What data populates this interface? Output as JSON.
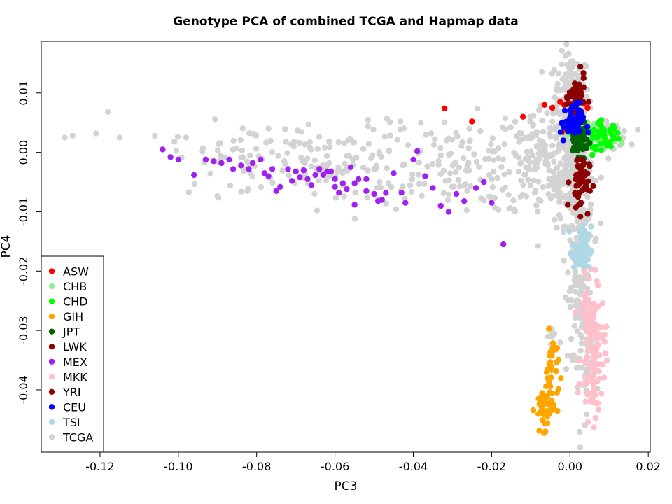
{
  "chart_data": {
    "type": "scatter",
    "title": "Genotype PCA of combined TCGA and Hapmap data",
    "xlabel": "PC3",
    "ylabel": "PC4",
    "xlim": [
      -0.135,
      0.0205
    ],
    "ylim": [
      -0.0505,
      0.0187
    ],
    "xticks": [
      -0.12,
      -0.1,
      -0.08,
      -0.06,
      -0.04,
      -0.02,
      0.0,
      0.02
    ],
    "xtick_labels": [
      "-0.12",
      "-0.10",
      "-0.08",
      "-0.06",
      "-0.04",
      "-0.02",
      "0.00",
      "0.02"
    ],
    "yticks": [
      -0.04,
      -0.03,
      -0.02,
      -0.01,
      0.0,
      0.01
    ],
    "ytick_labels": [
      "-0.04",
      "-0.03",
      "-0.02",
      "-0.01",
      "0.00",
      "0.01"
    ],
    "legend_position": "bottom-left",
    "series": [
      {
        "name": "ASW",
        "color": "#ff0000",
        "clusters": [
          {
            "points": [
              [
                -0.032,
                0.0074
              ],
              [
                -0.025,
                0.0052
              ],
              [
                -0.012,
                0.006
              ],
              [
                -0.0065,
                0.008
              ],
              [
                -0.0045,
                0.0075
              ],
              [
                -0.0025,
                0.0085
              ],
              [
                -0.0015,
                0.008
              ],
              [
                0.0015,
                0.0088
              ],
              [
                0.0035,
                0.0082
              ],
              [
                0.0045,
                0.0075
              ]
            ]
          },
          {
            "cx": 0.0008,
            "cy": 0.0068,
            "sx": 0.0018,
            "sy": 0.0012,
            "n": 10
          }
        ]
      },
      {
        "name": "CHB",
        "color": "#90ee90",
        "clusters": [
          {
            "cx": 0.0075,
            "cy": 0.0028,
            "sx": 0.0022,
            "sy": 0.0011,
            "n": 30
          }
        ]
      },
      {
        "name": "CHD",
        "color": "#00ff00",
        "clusters": [
          {
            "cx": 0.0085,
            "cy": 0.0028,
            "sx": 0.0022,
            "sy": 0.0011,
            "n": 45
          }
        ]
      },
      {
        "name": "GIH",
        "color": "#ffa500",
        "clusters": [
          {
            "cx": -0.0065,
            "cy": -0.043,
            "sx": 0.0012,
            "sy": 0.0018,
            "n": 45
          },
          {
            "cx": -0.0045,
            "cy": -0.036,
            "sx": 0.0008,
            "sy": 0.0028,
            "n": 30
          }
        ]
      },
      {
        "name": "JPT",
        "color": "#006400",
        "clusters": [
          {
            "cx": 0.0022,
            "cy": 0.002,
            "sx": 0.0012,
            "sy": 0.0012,
            "n": 60
          }
        ]
      },
      {
        "name": "LWK",
        "color": "#8b0000",
        "clusters": [
          {
            "cx": 0.0018,
            "cy": 0.0092,
            "sx": 0.001,
            "sy": 0.0018,
            "n": 55
          }
        ]
      },
      {
        "name": "MEX",
        "color": "#a020f0",
        "clusters": [
          {
            "points": [
              [
                -0.104,
                0.0005
              ],
              [
                -0.102,
                -0.0008
              ],
              [
                -0.1,
                -0.0012
              ],
              [
                -0.096,
                -0.0038
              ],
              [
                -0.093,
                -0.0012
              ],
              [
                -0.091,
                -0.0015
              ],
              [
                -0.089,
                -0.0018
              ],
              [
                -0.087,
                -0.0012
              ],
              [
                -0.086,
                -0.0028
              ],
              [
                -0.084,
                -0.0022
              ],
              [
                -0.082,
                -0.0028
              ],
              [
                -0.081,
                -0.0018
              ],
              [
                -0.079,
                -0.0012
              ],
              [
                -0.078,
                -0.0035
              ],
              [
                -0.076,
                -0.0028
              ],
              [
                -0.075,
                -0.0065
              ],
              [
                -0.074,
                -0.0058
              ],
              [
                -0.072,
                -0.0028
              ],
              [
                -0.071,
                -0.0048
              ],
              [
                -0.07,
                -0.0032
              ],
              [
                -0.069,
                -0.0042
              ],
              [
                -0.067,
                -0.0045
              ],
              [
                -0.066,
                -0.0055
              ],
              [
                -0.065,
                -0.0038
              ],
              [
                -0.064,
                -0.0028
              ],
              [
                -0.063,
                -0.0038
              ],
              [
                -0.062,
                -0.0032
              ],
              [
                -0.061,
                -0.0032
              ],
              [
                -0.06,
                -0.0058
              ],
              [
                -0.059,
                -0.0068
              ],
              [
                -0.058,
                -0.0052
              ],
              [
                -0.057,
                -0.0062
              ],
              [
                -0.056,
                -0.0025
              ],
              [
                -0.055,
                -0.0088
              ],
              [
                -0.054,
                -0.0045
              ],
              [
                -0.052,
                -0.0045
              ],
              [
                -0.05,
                -0.007
              ],
              [
                -0.049,
                -0.0082
              ],
              [
                -0.048,
                -0.008
              ],
              [
                -0.045,
                -0.0035
              ],
              [
                -0.043,
                -0.0068
              ],
              [
                -0.042,
                -0.0085
              ],
              [
                -0.04,
                -0.0012
              ],
              [
                -0.039,
                0.0002
              ],
              [
                -0.037,
                -0.004
              ],
              [
                -0.035,
                -0.006
              ],
              [
                -0.033,
                -0.009
              ],
              [
                -0.031,
                -0.01
              ],
              [
                -0.029,
                -0.007
              ],
              [
                -0.027,
                -0.0082
              ],
              [
                -0.024,
                -0.006
              ],
              [
                -0.022,
                -0.005
              ],
              [
                -0.02,
                -0.0085
              ],
              [
                -0.017,
                -0.0155
              ],
              [
                -0.055,
                -0.0052
              ],
              [
                -0.077,
                -0.004
              ],
              [
                -0.068,
                -0.003
              ],
              [
                -0.047,
                -0.0068
              ],
              [
                -0.052,
                -0.0065
              ],
              [
                -0.06,
                -0.0045
              ]
            ]
          }
        ]
      },
      {
        "name": "MKK",
        "color": "#ffc0cb",
        "clusters": [
          {
            "cx": 0.006,
            "cy": -0.034,
            "sx": 0.0015,
            "sy": 0.0055,
            "n": 110
          },
          {
            "cx": 0.005,
            "cy": -0.026,
            "sx": 0.001,
            "sy": 0.003,
            "n": 20
          }
        ]
      },
      {
        "name": "YRI",
        "color": "#8b0000",
        "clusters": [
          {
            "cx": 0.0025,
            "cy": -0.005,
            "sx": 0.0012,
            "sy": 0.0025,
            "n": 55
          }
        ]
      },
      {
        "name": "CEU",
        "color": "#0000ff",
        "clusters": [
          {
            "cx": 0.0005,
            "cy": 0.005,
            "sx": 0.0015,
            "sy": 0.0016,
            "n": 45
          }
        ]
      },
      {
        "name": "TSI",
        "color": "#add8e6",
        "clusters": [
          {
            "cx": 0.003,
            "cy": -0.0165,
            "sx": 0.0012,
            "sy": 0.002,
            "n": 55
          }
        ]
      },
      {
        "name": "TCGA",
        "color": "#d3d3d3",
        "clusters": [
          {
            "points": [
              [
                -0.129,
                0.0025
              ],
              [
                -0.127,
                0.0028
              ],
              [
                -0.121,
                0.0032
              ],
              [
                -0.118,
                0.0068
              ],
              [
                -0.115,
                0.0025
              ],
              [
                -0.106,
                0.0028
              ],
              [
                -0.101,
                0.0018
              ],
              [
                -0.098,
                0.0025
              ]
            ]
          },
          {
            "cx": 0.0005,
            "cy": 0.0095,
            "sx": 0.0022,
            "sy": 0.0035,
            "n": 180
          },
          {
            "cx": 0.001,
            "cy": -0.003,
            "sx": 0.0025,
            "sy": 0.0045,
            "n": 200
          },
          {
            "cx": 0.0028,
            "cy": -0.019,
            "sx": 0.0015,
            "sy": 0.006,
            "n": 120
          },
          {
            "cx": 0.011,
            "cy": 0.003,
            "sx": 0.002,
            "sy": 0.001,
            "n": 40
          },
          {
            "cx": -0.007,
            "cy": -0.0015,
            "sx": 0.006,
            "sy": 0.005,
            "n": 160
          },
          {
            "cx": -0.03,
            "cy": -0.002,
            "sx": 0.01,
            "sy": 0.004,
            "n": 120
          },
          {
            "cx": -0.06,
            "cy": -0.002,
            "sx": 0.01,
            "sy": 0.0035,
            "n": 110
          },
          {
            "cx": -0.085,
            "cy": -0.001,
            "sx": 0.008,
            "sy": 0.003,
            "n": 50
          },
          {
            "cx": 0.0035,
            "cy": -0.034,
            "sx": 0.002,
            "sy": 0.005,
            "n": 60
          },
          {
            "cx": -0.004,
            "cy": -0.031,
            "sx": 0.001,
            "sy": 0.001,
            "n": 8
          }
        ]
      }
    ]
  }
}
